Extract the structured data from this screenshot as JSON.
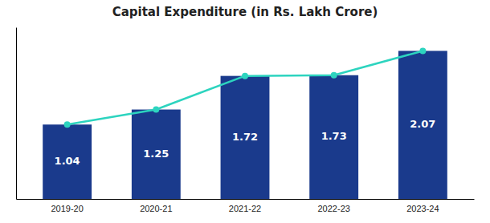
{
  "chart_data": {
    "type": "bar",
    "title": "Capital Expenditure (in Rs. Lakh Crore)",
    "categories": [
      "2019-20",
      "2020-21",
      "2021-22",
      "2022-23",
      "2023-24"
    ],
    "series": [
      {
        "type": "bar",
        "color": "#1a3a8c",
        "values": [
          1.04,
          1.25,
          1.72,
          1.73,
          2.07
        ]
      },
      {
        "type": "line",
        "color": "#2dd4bf",
        "marker": "circle",
        "values": [
          1.04,
          1.25,
          1.72,
          1.73,
          2.07
        ]
      }
    ],
    "ylim": [
      0,
      2.4
    ],
    "data_labels": true,
    "tick_labels": "x",
    "grid": false
  }
}
